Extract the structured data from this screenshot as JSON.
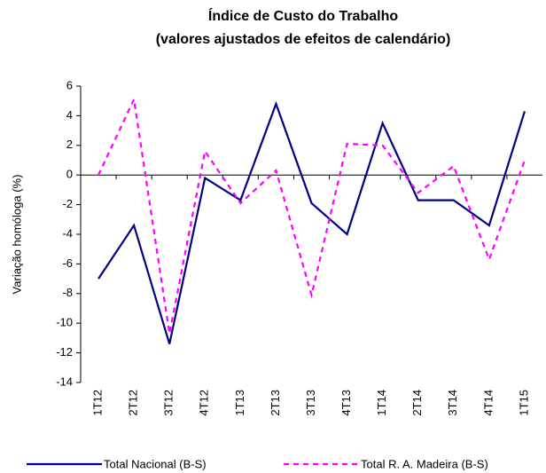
{
  "chart_data": {
    "type": "line",
    "title": "Índice de Custo do Trabalho",
    "subtitle": "(valores ajustados de efeitos de calendário)",
    "y_label": "Variação homóloga (%)",
    "categories": [
      "1T12",
      "2T12",
      "3T12",
      "4T12",
      "1T13",
      "2T13",
      "3T13",
      "4T13",
      "1T14",
      "2T14",
      "3T14",
      "4T14",
      "1T15"
    ],
    "series": [
      {
        "name": "Total Nacional (B-S)",
        "color": "#000080",
        "dash": "solid",
        "values": [
          -7.0,
          -3.4,
          -11.4,
          -0.2,
          -1.7,
          4.8,
          -1.9,
          -4.0,
          3.5,
          -1.7,
          -1.7,
          -3.4,
          4.3
        ]
      },
      {
        "name": "Total R. A. Madeira (B-S)",
        "color": "#ff00ff",
        "dash": "dashed",
        "values": [
          0.0,
          5.1,
          -10.7,
          1.6,
          -1.9,
          0.3,
          -8.1,
          2.1,
          2.0,
          -1.2,
          0.6,
          -5.7,
          1.0
        ]
      }
    ],
    "ylim": [
      -14,
      6
    ],
    "yticks": [
      -14,
      -12,
      -10,
      -8,
      -6,
      -4,
      -2,
      0,
      2,
      4,
      6
    ]
  }
}
